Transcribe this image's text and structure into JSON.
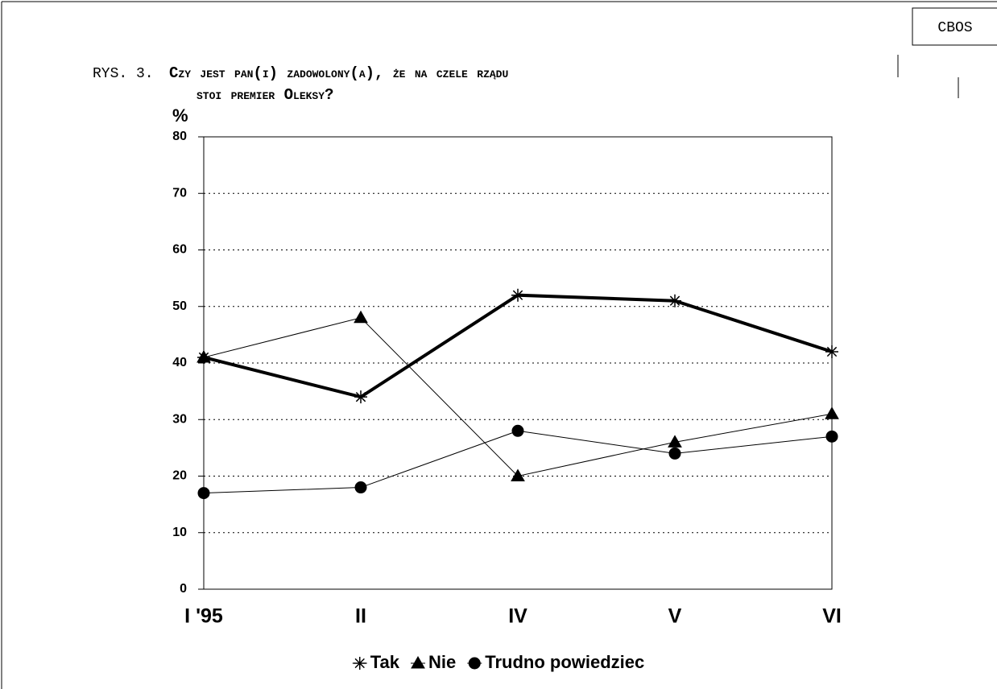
{
  "page_label": "CBOS",
  "chart_data": {
    "type": "line",
    "figure_label": "RYS. 3.",
    "title_lines": [
      "Czy jest pan(i) zadowolony(a), że na czele rządu",
      "stoi premier Oleksy?"
    ],
    "y_label": "%",
    "categories": [
      "I '95",
      "II",
      "IV",
      "V",
      "VI"
    ],
    "series": [
      {
        "name": "Tak",
        "color": "#000000",
        "marker": "star",
        "line_width": 4,
        "values": [
          41,
          34,
          52,
          51,
          42
        ]
      },
      {
        "name": "Nie",
        "color": "#000000",
        "marker": "triangle",
        "line_width": 1,
        "values": [
          41,
          48,
          20,
          26,
          31
        ]
      },
      {
        "name": "Trudno powiedziec",
        "color": "#000000",
        "marker": "circle",
        "line_width": 1,
        "values": [
          17,
          18,
          28,
          24,
          27
        ]
      }
    ],
    "ylim": [
      0,
      80
    ],
    "yticks": [
      0,
      10,
      20,
      30,
      40,
      50,
      60,
      70,
      80
    ],
    "grid": true,
    "legend": "bottom"
  }
}
